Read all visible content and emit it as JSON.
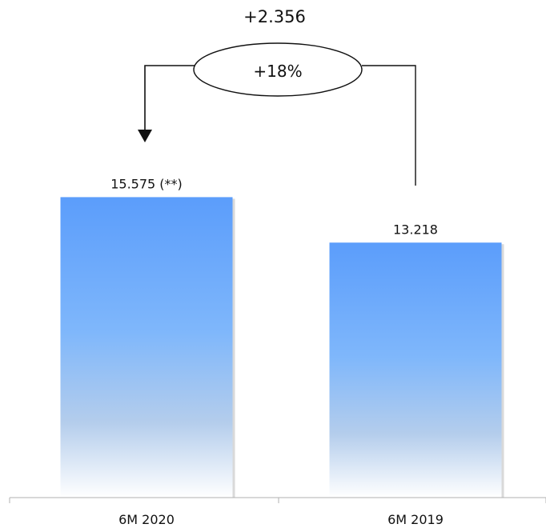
{
  "chart_data": {
    "type": "bar",
    "categories": [
      "6M 2020",
      "6M 2019"
    ],
    "values": [
      15575,
      13218
    ],
    "data_labels": [
      "15.575 (**)",
      "13.218"
    ],
    "title": "",
    "xlabel": "",
    "ylabel": "",
    "ylim": [
      0,
      17500
    ],
    "grid": false,
    "legend": "none",
    "bar_color_top": "#5b9dfb",
    "bar_color_bottom": "#ffffff",
    "annotation": {
      "difference_label": "+2.356",
      "percent_label": "+18%"
    }
  }
}
